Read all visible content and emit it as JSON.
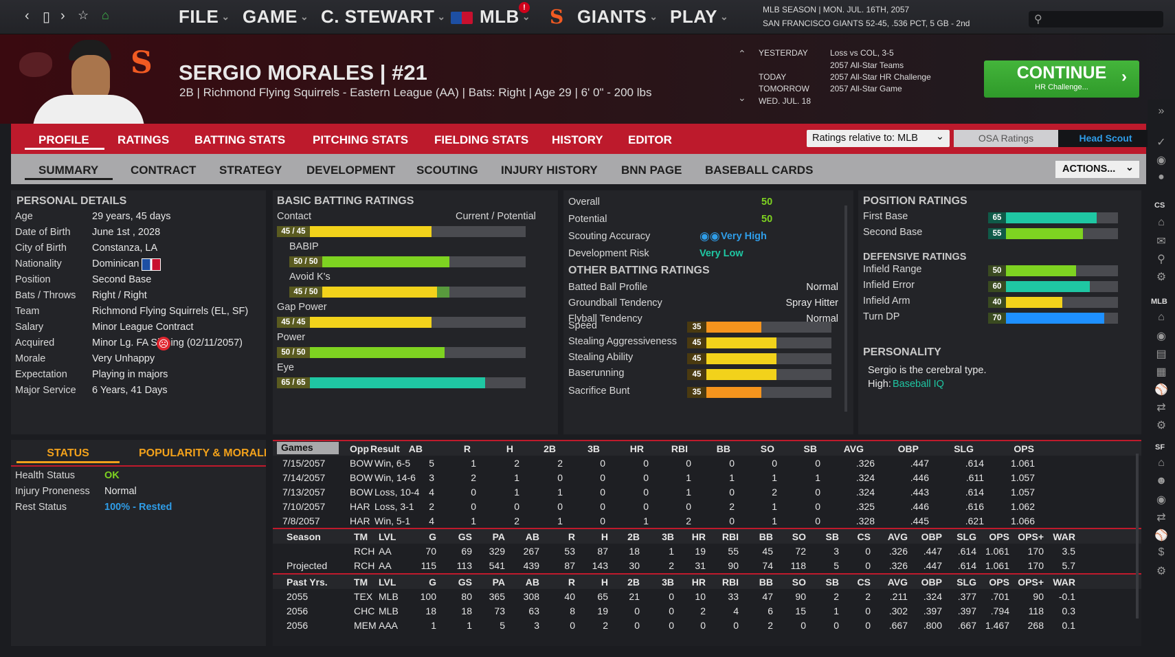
{
  "topbar": {
    "menus": [
      "FILE",
      "GAME",
      "C. STEWART",
      "MLB",
      "GIANTS",
      "PLAY"
    ],
    "season_line1": "MLB SEASON  |  MON. JUL. 16TH, 2057",
    "season_line2": "SAN FRANCISCO GIANTS  52-45, .536 PCT, 5 GB - 2nd"
  },
  "player": {
    "name": "SERGIO MORALES  |  #21",
    "info": "2B | Richmond Flying Squirrels - Eastern League (AA)  |  Bats: Right  |  Age 29  |  6' 0\"  - 200 lbs"
  },
  "schedule": {
    "yesterday_label": "YESTERDAY",
    "yesterday_val": "Loss vs COL, 3-5",
    "allstar_teams": "2057 All-Star Teams",
    "today_label": "TODAY",
    "today_val": "2057 All-Star HR Challenge",
    "tomorrow_label": "TOMORROW",
    "tomorrow_val": "2057 All-Star Game",
    "wed_label": "WED. JUL. 18"
  },
  "continue": {
    "label": "CONTINUE",
    "sub": "HR Challenge..."
  },
  "tabs1": [
    "PROFILE",
    "RATINGS",
    "BATTING STATS",
    "PITCHING STATS",
    "FIELDING STATS",
    "HISTORY",
    "EDITOR"
  ],
  "ratings_relative": "Ratings relative to: MLB",
  "osa": "OSA Ratings",
  "head_scout": "Head Scout",
  "tabs2": [
    "SUMMARY",
    "CONTRACT",
    "STRATEGY",
    "DEVELOPMENT",
    "SCOUTING",
    "INJURY HISTORY",
    "BNN PAGE",
    "BASEBALL CARDS"
  ],
  "actions": "ACTIONS...",
  "personal": {
    "title": "PERSONAL DETAILS",
    "rows": [
      [
        "Age",
        "29 years, 45 days"
      ],
      [
        "Date of Birth",
        "June 1st , 2028"
      ],
      [
        "City of Birth",
        "Constanza, LA"
      ],
      [
        "Nationality",
        "Dominican"
      ],
      [
        "Position",
        "Second Base"
      ],
      [
        "Bats / Throws",
        "Right / Right"
      ],
      [
        "Team",
        "Richmond Flying Squirrels (EL, SF)"
      ],
      [
        "Salary",
        "Minor League Contract"
      ],
      [
        "Acquired",
        "Minor Lg. FA Signing (02/11/2057)"
      ],
      [
        "Morale",
        "Very Unhappy"
      ],
      [
        "Expectation",
        "Playing in majors"
      ],
      [
        "Major Service",
        "6 Years, 41 Days"
      ]
    ]
  },
  "status": {
    "tab1": "STATUS",
    "tab2": "POPULARITY & MORALE",
    "rows": [
      [
        "Health Status",
        "OK"
      ],
      [
        "Injury Proneness",
        "Normal"
      ],
      [
        "Rest Status",
        "100% - Rested"
      ]
    ]
  },
  "batting": {
    "title": "BASIC BATTING RATINGS",
    "cur_pot": "Current / Potential",
    "items": [
      {
        "label": "Contact",
        "badge": "45 / 45",
        "value": 45,
        "potential": 45,
        "color": "#f2d21b"
      },
      {
        "label": "BABIP",
        "badge": "50 / 50",
        "value": 50,
        "potential": 50,
        "color": "#7ed321"
      },
      {
        "label": "Avoid K's",
        "badge": "45 / 50",
        "value": 45,
        "potential": 50,
        "color": "#f2d21b"
      },
      {
        "label": "Gap Power",
        "badge": "45 / 45",
        "value": 45,
        "potential": 45,
        "color": "#f2d21b"
      },
      {
        "label": "Power",
        "badge": "50 / 50",
        "value": 50,
        "potential": 50,
        "color": "#7ed321"
      },
      {
        "label": "Eye",
        "badge": "65 / 65",
        "value": 65,
        "potential": 65,
        "color": "#1fc7a3"
      }
    ]
  },
  "overall": {
    "overall_label": "Overall",
    "overall": "50",
    "potential_label": "Potential",
    "potential": "50",
    "scout_label": "Scouting Accuracy",
    "scout": "Very High",
    "dev_label": "Development Risk",
    "dev": "Very Low",
    "other_title": "OTHER BATTING RATINGS",
    "other": [
      [
        "Batted Ball Profile",
        "Normal"
      ],
      [
        "Groundball Tendency",
        "Spray Hitter"
      ],
      [
        "Flyball Tendency",
        "Normal"
      ]
    ],
    "speed": [
      {
        "label": "Speed",
        "value": 35,
        "color": "#f5941d"
      },
      {
        "label": "Stealing Aggressiveness",
        "value": 45,
        "color": "#f2d21b"
      },
      {
        "label": "Stealing Ability",
        "value": 45,
        "color": "#f2d21b"
      },
      {
        "label": "Baserunning",
        "value": 45,
        "color": "#f2d21b"
      },
      {
        "label": "Sacrifice Bunt",
        "value": 35,
        "color": "#f5941d"
      }
    ]
  },
  "position": {
    "title": "POSITION RATINGS",
    "items": [
      {
        "label": "First Base",
        "value": 65,
        "color": "#1fc7a3"
      },
      {
        "label": "Second Base",
        "value": 55,
        "color": "#7ed321"
      }
    ],
    "def_title": "DEFENSIVE RATINGS",
    "def": [
      {
        "label": "Infield Range",
        "value": 50,
        "color": "#7ed321"
      },
      {
        "label": "Infield Error",
        "value": 60,
        "color": "#1fc7a3"
      },
      {
        "label": "Infield Arm",
        "value": 40,
        "color": "#f2d21b"
      },
      {
        "label": "Turn DP",
        "value": 70,
        "color": "#1e90ff"
      }
    ],
    "pers_title": "PERSONALITY",
    "pers_text": "Sergio is the cerebral type.",
    "pers_high": "High:",
    "pers_high_val": "Baseball IQ"
  },
  "games": {
    "select": "Games",
    "headers": [
      "Opp",
      "Result",
      "AB",
      "R",
      "H",
      "2B",
      "3B",
      "HR",
      "RBI",
      "BB",
      "SO",
      "SB",
      "AVG",
      "OBP",
      "SLG",
      "OPS"
    ],
    "rows": [
      [
        "7/15/2057",
        "BOW",
        "Win, 6-5",
        "5",
        "1",
        "2",
        "2",
        "0",
        "0",
        "0",
        "0",
        "0",
        "0",
        ".326",
        ".447",
        ".614",
        "1.061"
      ],
      [
        "7/14/2057",
        "BOW",
        "Win, 14-6",
        "3",
        "2",
        "1",
        "0",
        "0",
        "0",
        "1",
        "1",
        "1",
        "1",
        ".324",
        ".446",
        ".611",
        "1.057"
      ],
      [
        "7/13/2057",
        "BOW",
        "Loss, 10-4",
        "4",
        "0",
        "1",
        "1",
        "0",
        "0",
        "1",
        "0",
        "2",
        "0",
        ".324",
        ".443",
        ".614",
        "1.057"
      ],
      [
        "7/10/2057",
        "HAR",
        "Loss, 3-1",
        "2",
        "0",
        "0",
        "0",
        "0",
        "0",
        "0",
        "2",
        "1",
        "0",
        ".325",
        ".446",
        ".616",
        "1.062"
      ],
      [
        "7/8/2057",
        "HAR",
        "Win, 5-1",
        "4",
        "1",
        "2",
        "1",
        "0",
        "1",
        "2",
        "0",
        "1",
        "0",
        ".328",
        ".445",
        ".621",
        "1.066"
      ]
    ]
  },
  "season": {
    "headers": [
      "Season",
      "TM",
      "LVL",
      "G",
      "GS",
      "PA",
      "AB",
      "R",
      "H",
      "2B",
      "3B",
      "HR",
      "RBI",
      "BB",
      "SO",
      "SB",
      "CS",
      "AVG",
      "OBP",
      "SLG",
      "OPS",
      "OPS+",
      "WAR"
    ],
    "rows": [
      [
        "",
        "RCH",
        "AA",
        "70",
        "69",
        "329",
        "267",
        "53",
        "87",
        "18",
        "1",
        "19",
        "55",
        "45",
        "72",
        "3",
        "0",
        ".326",
        ".447",
        ".614",
        "1.061",
        "170",
        "3.5"
      ],
      [
        "Projected",
        "RCH",
        "AA",
        "115",
        "113",
        "541",
        "439",
        "87",
        "143",
        "30",
        "2",
        "31",
        "90",
        "74",
        "118",
        "5",
        "0",
        ".326",
        ".447",
        ".614",
        "1.061",
        "170",
        "5.7"
      ]
    ]
  },
  "past": {
    "headers": [
      "Past Yrs.",
      "TM",
      "LVL",
      "G",
      "GS",
      "PA",
      "AB",
      "R",
      "H",
      "2B",
      "3B",
      "HR",
      "RBI",
      "BB",
      "SO",
      "SB",
      "CS",
      "AVG",
      "OBP",
      "SLG",
      "OPS",
      "OPS+",
      "WAR"
    ],
    "rows": [
      [
        "2055",
        "TEX",
        "MLB",
        "100",
        "80",
        "365",
        "308",
        "40",
        "65",
        "21",
        "0",
        "10",
        "33",
        "47",
        "90",
        "2",
        "2",
        ".211",
        ".324",
        ".377",
        ".701",
        "90",
        "-0.1"
      ],
      [
        "2056",
        "CHC",
        "MLB",
        "18",
        "18",
        "73",
        "63",
        "8",
        "19",
        "0",
        "0",
        "2",
        "4",
        "6",
        "15",
        "1",
        "0",
        ".302",
        ".397",
        ".397",
        ".794",
        "118",
        "0.3"
      ],
      [
        "2056",
        "MEM",
        "AAA",
        "1",
        "1",
        "5",
        "3",
        "0",
        "2",
        "0",
        "0",
        "0",
        "0",
        "2",
        "0",
        "0",
        "0",
        ".667",
        ".800",
        ".667",
        "1.467",
        "268",
        "0.1"
      ]
    ]
  },
  "sidebar": {
    "cs": "CS",
    "mlb": "MLB",
    "sf": "SF"
  }
}
